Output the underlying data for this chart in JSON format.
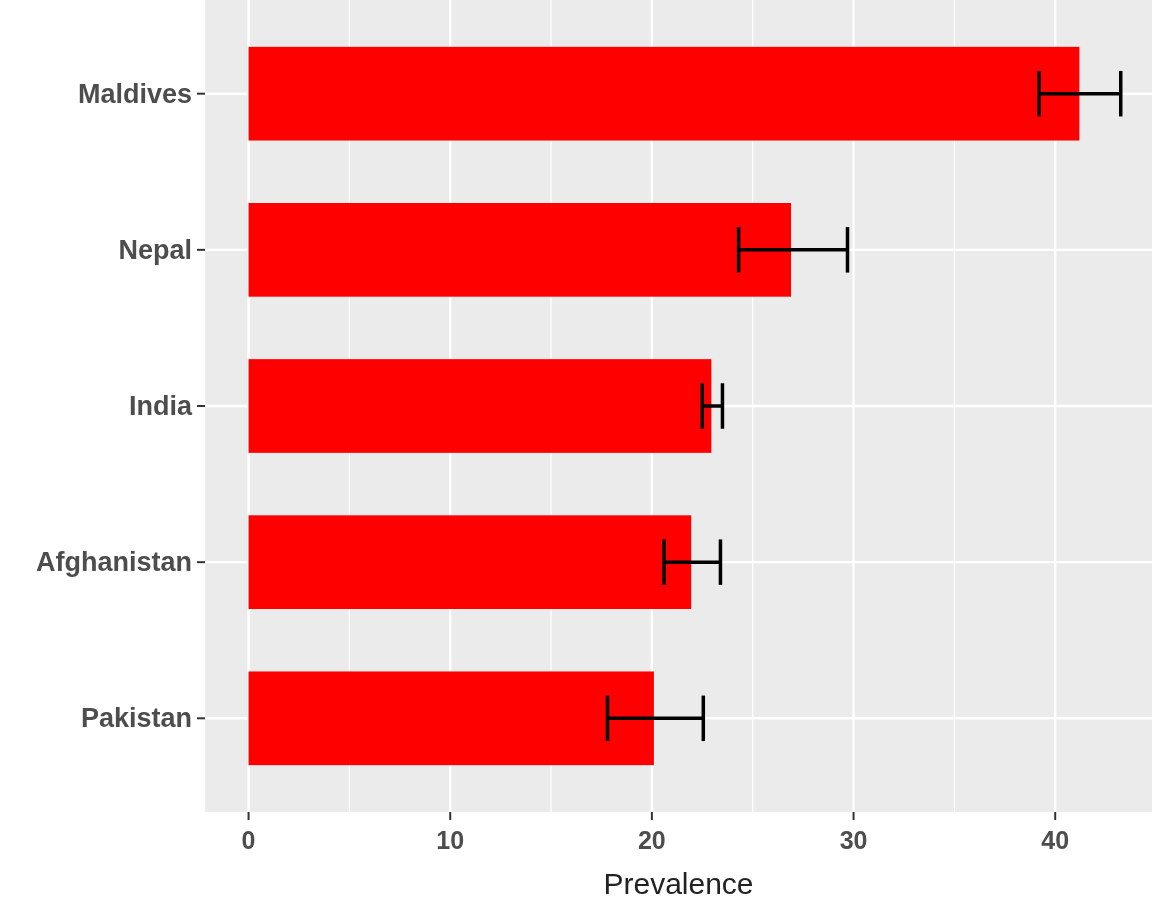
{
  "chart_data": {
    "type": "bar",
    "orientation": "horizontal",
    "categories": [
      "Maldives",
      "Nepal",
      "India",
      "Afghanistan",
      "Pakistan"
    ],
    "values": [
      41.2,
      26.9,
      22.95,
      21.95,
      20.1
    ],
    "errors": [
      [
        39.2,
        43.25
      ],
      [
        24.3,
        29.7
      ],
      [
        22.5,
        23.5
      ],
      [
        20.6,
        23.4
      ],
      [
        17.8,
        22.55
      ]
    ],
    "color": "#ff0000",
    "xlabel": "Prevalence",
    "xlim": [
      -2.16,
      44.8
    ],
    "xticks": [
      0,
      10,
      20,
      30,
      40
    ],
    "grid": true
  }
}
